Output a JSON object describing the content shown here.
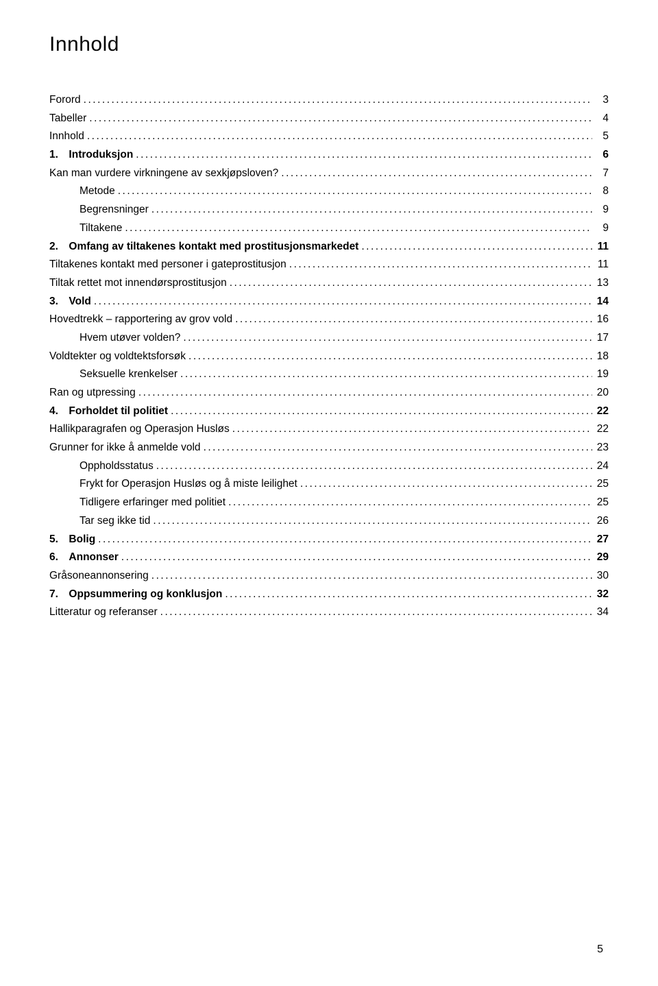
{
  "title": "Innhold",
  "page_number": "5",
  "colors": {
    "text": "#000000",
    "background": "#ffffff"
  },
  "typography": {
    "title_fontsize": 30,
    "body_fontsize": 15.5,
    "font_family": "Verdana"
  },
  "entries": [
    {
      "label": "Forord",
      "page": "3",
      "level": 0,
      "bold": false
    },
    {
      "label": "Tabeller",
      "page": "4",
      "level": 0,
      "bold": false
    },
    {
      "label": "Innhold",
      "page": "5",
      "level": 0,
      "bold": false
    },
    {
      "label": "1. Introduksjon",
      "page": "6",
      "level": 0,
      "bold": true
    },
    {
      "label": "Kan man vurdere virkningene av sexkjøpsloven?",
      "page": "7",
      "level": 0,
      "bold": false
    },
    {
      "label": "Metode",
      "page": "8",
      "level": 1,
      "bold": false
    },
    {
      "label": "Begrensninger",
      "page": "9",
      "level": 1,
      "bold": false
    },
    {
      "label": "Tiltakene",
      "page": "9",
      "level": 1,
      "bold": false
    },
    {
      "label": "2. Omfang av tiltakenes kontakt med prostitusjonsmarkedet",
      "page": "11",
      "level": 0,
      "bold": true
    },
    {
      "label": "Tiltakenes kontakt med personer i gateprostitusjon",
      "page": "11",
      "level": 0,
      "bold": false
    },
    {
      "label": "Tiltak rettet mot innendørsprostitusjon",
      "page": "13",
      "level": 0,
      "bold": false
    },
    {
      "label": "3. Vold",
      "page": "14",
      "level": 0,
      "bold": true
    },
    {
      "label": "Hovedtrekk – rapportering av grov vold",
      "page": "16",
      "level": 0,
      "bold": false
    },
    {
      "label": "Hvem utøver volden?",
      "page": "17",
      "level": 1,
      "bold": false
    },
    {
      "label": "Voldtekter og voldtektsforsøk",
      "page": "18",
      "level": 0,
      "bold": false
    },
    {
      "label": "Seksuelle krenkelser",
      "page": "19",
      "level": 1,
      "bold": false
    },
    {
      "label": "Ran og utpressing",
      "page": "20",
      "level": 0,
      "bold": false
    },
    {
      "label": "4. Forholdet til politiet",
      "page": "22",
      "level": 0,
      "bold": true
    },
    {
      "label": "Hallikparagrafen og Operasjon Husløs",
      "page": "22",
      "level": 0,
      "bold": false
    },
    {
      "label": "Grunner for ikke å anmelde vold",
      "page": "23",
      "level": 0,
      "bold": false
    },
    {
      "label": "Oppholdsstatus",
      "page": "24",
      "level": 1,
      "bold": false
    },
    {
      "label": "Frykt for Operasjon Husløs og å miste leilighet",
      "page": "25",
      "level": 1,
      "bold": false
    },
    {
      "label": "Tidligere erfaringer med politiet",
      "page": "25",
      "level": 1,
      "bold": false
    },
    {
      "label": "Tar seg ikke tid",
      "page": "26",
      "level": 1,
      "bold": false
    },
    {
      "label": "5. Bolig",
      "page": "27",
      "level": 0,
      "bold": true
    },
    {
      "label": "6. Annonser",
      "page": "29",
      "level": 0,
      "bold": true
    },
    {
      "label": "Gråsoneannonsering",
      "page": "30",
      "level": 0,
      "bold": false
    },
    {
      "label": "7. Oppsummering og konklusjon",
      "page": "32",
      "level": 0,
      "bold": true
    },
    {
      "label": "Litteratur og referanser",
      "page": "34",
      "level": 0,
      "bold": false
    }
  ]
}
